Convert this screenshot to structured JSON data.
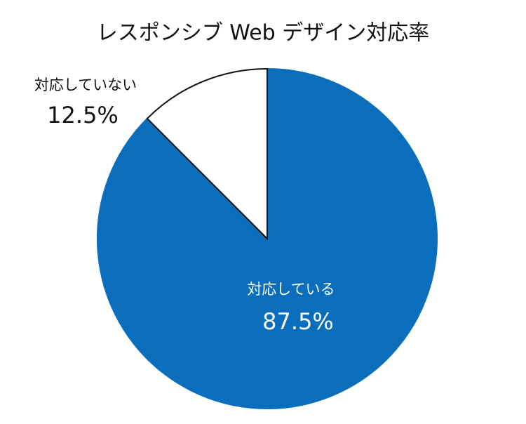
{
  "chart_data": {
    "type": "pie",
    "title": "レスポンシブ Web デザイン対応率",
    "categories": [
      "対応している",
      "対応していない"
    ],
    "values": [
      87.5,
      12.5
    ],
    "value_labels": [
      "87.5%",
      "12.5%"
    ],
    "colors": [
      "#0a6ebd",
      "#ffffff"
    ]
  }
}
